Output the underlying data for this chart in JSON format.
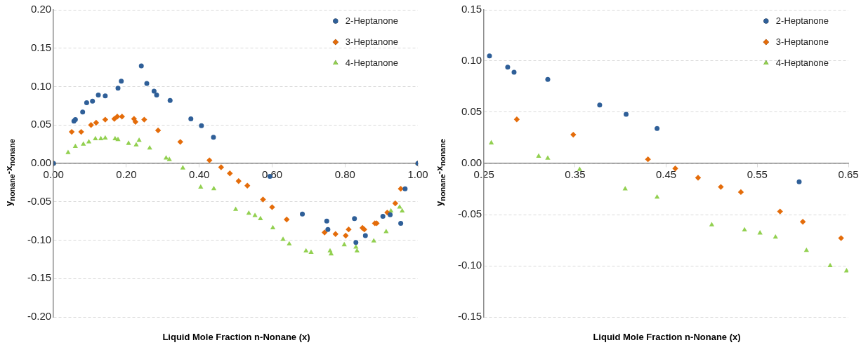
{
  "chart_data": [
    {
      "type": "scatter",
      "xlabel": "Liquid Mole Fraction n-Nonane  (x)",
      "ylabel": "y$_{nonane}$-x$_{nonane}$",
      "legend": "top right",
      "grid": "y",
      "xlim": [
        0,
        1
      ],
      "xticks": [
        {
          "value": 0,
          "label": "0.00"
        },
        {
          "value": 0.2,
          "label": "0.20"
        },
        {
          "value": 0.4,
          "label": "0.40"
        },
        {
          "value": 0.6,
          "label": "0.60"
        },
        {
          "value": 0.8,
          "label": "0.80"
        },
        {
          "value": 1,
          "label": "1.00"
        }
      ],
      "ylim": [
        -0.2,
        0.2
      ],
      "yticks": [
        {
          "value": -0.2,
          "label": "-0.20"
        },
        {
          "value": -0.15,
          "label": "-0.15"
        },
        {
          "value": -0.1,
          "label": "-0.10"
        },
        {
          "value": -0.05,
          "label": "-0.05"
        },
        {
          "value": 0,
          "label": "0.00"
        },
        {
          "value": 0.05,
          "label": "0.05"
        },
        {
          "value": 0.1,
          "label": "0.10"
        },
        {
          "value": 0.15,
          "label": "0.15"
        },
        {
          "value": 0.2,
          "label": "0.20"
        }
      ],
      "series": [
        {
          "name": "2-Heptanone",
          "color": "#2f5f98",
          "marker": "circle",
          "x": [
            0,
            0.056,
            0.06,
            0.08,
            0.091,
            0.107,
            0.123,
            0.142,
            0.177,
            0.186,
            0.241,
            0.256,
            0.276,
            0.283,
            0.32,
            0.377,
            0.406,
            0.439,
            0.594,
            0.683,
            0.75,
            0.753,
            0.826,
            0.83,
            0.856,
            0.904,
            0.924,
            0.953,
            0.965,
            1
          ],
          "values": [
            0,
            0.055,
            0.057,
            0.067,
            0.079,
            0.081,
            0.089,
            0.088,
            0.098,
            0.107,
            0.127,
            0.104,
            0.094,
            0.089,
            0.082,
            0.058,
            0.049,
            0.034,
            -0.017,
            -0.066,
            -0.075,
            -0.086,
            -0.072,
            -0.103,
            -0.094,
            -0.069,
            -0.067,
            -0.078,
            -0.033,
            0
          ]
        },
        {
          "name": "3-Heptanone",
          "color": "#e46c0a",
          "marker": "diamond",
          "x": [
            0,
            0.05,
            0.076,
            0.103,
            0.117,
            0.142,
            0.167,
            0.175,
            0.188,
            0.221,
            0.225,
            0.249,
            0.287,
            0.348,
            0.428,
            0.46,
            0.484,
            0.508,
            0.532,
            0.575,
            0.6,
            0.64,
            0.744,
            0.774,
            0.802,
            0.81,
            0.848,
            0.853,
            0.882,
            0.887,
            0.916,
            0.938,
            0.953,
            1
          ],
          "values": [
            0,
            0.041,
            0.041,
            0.05,
            0.053,
            0.057,
            0.058,
            0.061,
            0.061,
            0.058,
            0.054,
            0.057,
            0.043,
            0.028,
            0.004,
            -0.005,
            -0.013,
            -0.023,
            -0.029,
            -0.047,
            -0.057,
            -0.073,
            -0.09,
            -0.092,
            -0.094,
            -0.086,
            -0.084,
            -0.086,
            -0.078,
            -0.078,
            -0.064,
            -0.052,
            -0.033,
            0
          ]
        },
        {
          "name": "4-Heptanone",
          "color": "#92d050",
          "marker": "triangle",
          "x": [
            0,
            0.04,
            0.06,
            0.082,
            0.097,
            0.115,
            0.13,
            0.142,
            0.169,
            0.177,
            0.206,
            0.227,
            0.235,
            0.264,
            0.309,
            0.318,
            0.355,
            0.404,
            0.44,
            0.5,
            0.536,
            0.553,
            0.568,
            0.602,
            0.63,
            0.647,
            0.693,
            0.707,
            0.759,
            0.762,
            0.798,
            0.83,
            0.833,
            0.879,
            0.913,
            0.926,
            0.95,
            0.957,
            1
          ],
          "values": [
            0,
            0.014,
            0.022,
            0.025,
            0.028,
            0.032,
            0.032,
            0.033,
            0.032,
            0.031,
            0.026,
            0.024,
            0.03,
            0.02,
            0.007,
            0.005,
            -0.006,
            -0.031,
            -0.033,
            -0.06,
            -0.065,
            -0.068,
            -0.072,
            -0.084,
            -0.099,
            -0.105,
            -0.114,
            -0.116,
            -0.114,
            -0.118,
            -0.106,
            -0.109,
            -0.114,
            -0.101,
            -0.089,
            -0.062,
            -0.057,
            -0.062,
            0
          ]
        }
      ]
    },
    {
      "type": "scatter",
      "xlabel": "Liquid Mole Fraction n-Nonane  (x)",
      "ylabel": "y$_{nonane}$-x$_{nonane}$",
      "legend": "top right",
      "grid": "y",
      "xlim": [
        0.25,
        0.65
      ],
      "xticks": [
        0.25,
        0.35,
        0.45,
        0.55,
        0.65
      ],
      "ylim": [
        -0.15,
        0.15
      ],
      "yticks": [
        {
          "value": -0.15,
          "label": "-0.15"
        },
        {
          "value": -0.1,
          "label": "-0.10"
        },
        {
          "value": -0.05,
          "label": "-0.05"
        },
        {
          "value": 0,
          "label": "0.00"
        },
        {
          "value": 0.05,
          "label": "0.05"
        },
        {
          "value": 0.1,
          "label": "0.10"
        },
        {
          "value": 0.15,
          "label": "0.15"
        }
      ],
      "series": [
        {
          "name": "2-Heptanone",
          "color": "#2f5f98",
          "marker": "circle",
          "x": [
            0.256,
            0.276,
            0.283,
            0.32,
            0.377,
            0.406,
            0.44,
            0.596
          ],
          "values": [
            0.105,
            0.094,
            0.089,
            0.082,
            0.057,
            0.048,
            0.034,
            -0.018
          ]
        },
        {
          "name": "3-Heptanone",
          "color": "#e46c0a",
          "marker": "diamond",
          "x": [
            0.286,
            0.348,
            0.43,
            0.46,
            0.485,
            0.51,
            0.532,
            0.575,
            0.6,
            0.642
          ],
          "values": [
            0.043,
            0.028,
            0.004,
            -0.005,
            -0.014,
            -0.023,
            -0.028,
            -0.047,
            -0.057,
            -0.073
          ]
        },
        {
          "name": "4-Heptanone",
          "color": "#92d050",
          "marker": "triangle",
          "x": [
            0.258,
            0.31,
            0.32,
            0.355,
            0.405,
            0.44,
            0.5,
            0.536,
            0.553,
            0.57,
            0.604,
            0.63,
            0.648
          ],
          "values": [
            0.02,
            0.007,
            0.005,
            -0.006,
            -0.025,
            -0.033,
            -0.06,
            -0.065,
            -0.068,
            -0.072,
            -0.085,
            -0.1,
            -0.105
          ]
        }
      ]
    }
  ]
}
